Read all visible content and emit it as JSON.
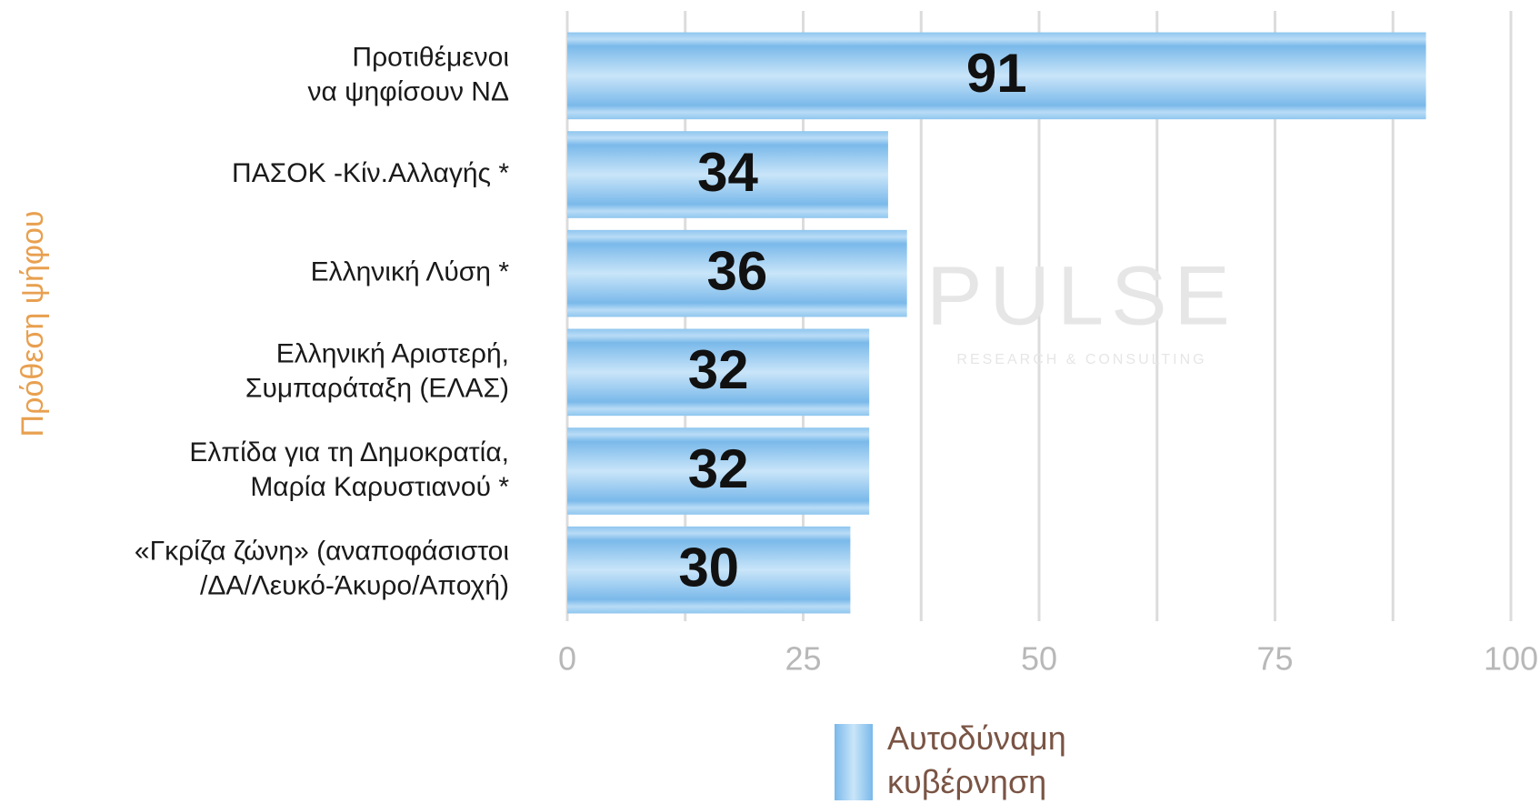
{
  "chart_data": {
    "type": "barh",
    "y_label": "Πρόθεση ψήφου",
    "categories": [
      "Προτιθέμενοι\nνα ψηφίσουν ΝΔ",
      "ΠΑΣΟΚ -Κίν.Αλλαγής *",
      "Ελληνική Λύση *",
      "Ελληνική Αριστερή,\nΣυμπαράταξη (ΕΛΑΣ)",
      "Ελπίδα για τη Δημοκρατία,\nΜαρία Καρυστιανού *",
      "«Γκρίζα ζώνη» (αναποφάσιστοι\n/ΔΑ/Λευκό-Άκυρο/Αποχή)"
    ],
    "series": [
      {
        "name": "Αυτοδύναμη\nκυβέρνηση",
        "color": "#7dbdec",
        "values": [
          91,
          34,
          36,
          32,
          32,
          30
        ]
      }
    ],
    "xlim": [
      0,
      100
    ],
    "xticks": [
      0,
      25,
      50,
      75,
      100
    ],
    "grid": true,
    "watermark": [
      "PULSE",
      "RESEARCH & CONSULTING"
    ]
  }
}
